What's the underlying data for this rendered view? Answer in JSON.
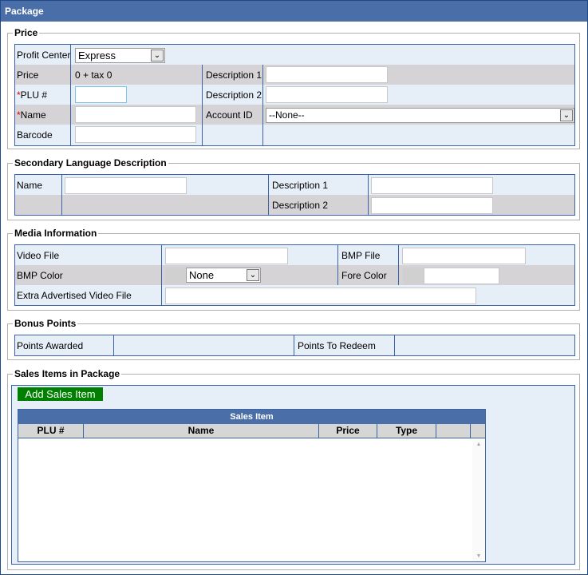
{
  "title": "Package",
  "price": {
    "legend": "Price",
    "profit_center_label": "Profit Center",
    "profit_center_value": "Express",
    "price_label": "Price",
    "price_value": "0 + tax 0",
    "plu_label": "PLU #",
    "name_label": "Name",
    "barcode_label": "Barcode",
    "desc1_label": "Description 1",
    "desc2_label": "Description 2",
    "account_label": "Account ID",
    "account_value": "--None--",
    "required_mark": "*"
  },
  "secondary": {
    "legend": "Secondary Language Description",
    "name_label": "Name",
    "desc1_label": "Description 1",
    "desc2_label": "Description 2"
  },
  "media": {
    "legend": "Media Information",
    "video_label": "Video File",
    "bmp_file_label": "BMP File",
    "bmp_color_label": "BMP Color",
    "bmp_color_value": "None",
    "fore_color_label": "Fore Color",
    "extra_label": "Extra Advertised Video File"
  },
  "bonus": {
    "legend": "Bonus Points",
    "awarded_label": "Points Awarded",
    "redeem_label": "Points To Redeem"
  },
  "sales": {
    "legend": "Sales Items in Package",
    "add_button": "Add Sales Item",
    "grid_title": "Sales Item",
    "columns": [
      "PLU #",
      "Name",
      "Price",
      "Type",
      ""
    ]
  },
  "colors": {
    "header": "#4a6ea8",
    "button": "#008000",
    "required": "#dd0000"
  }
}
